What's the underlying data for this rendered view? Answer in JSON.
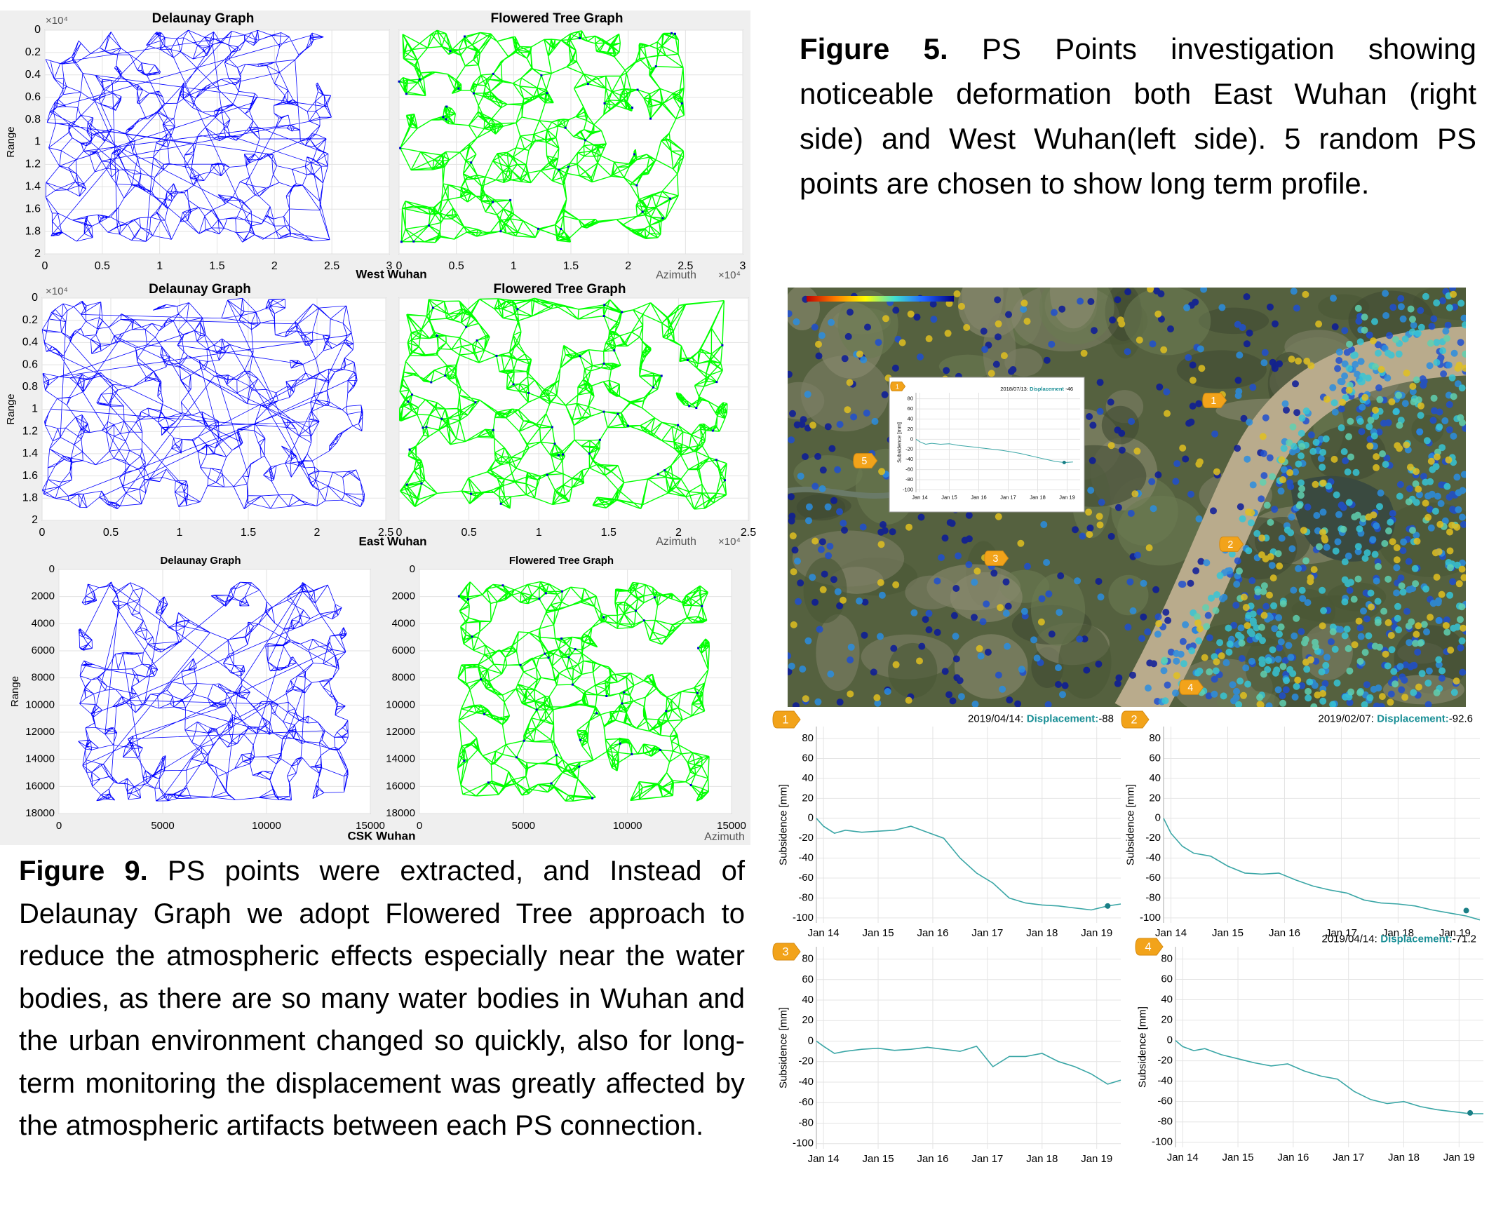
{
  "figure9": {
    "label": "Figure 9.",
    "text": "PS points were extracted, and Instead of Delaunay Graph we adopt Flowered Tree approach to reduce the atmospheric effects especially near the water bodies, as there are so many water bodies in Wuhan and the urban environment changed so quickly, also for long-term monitoring the displacement was greatly affected by the atmospheric artifacts between each PS connection.",
    "rows": [
      {
        "name": "West Wuhan",
        "x_label": "Azimuth",
        "scale": "×10⁴",
        "y_label": "Range",
        "xticks": [
          0,
          0.5,
          1,
          1.5,
          2,
          2.5,
          3
        ],
        "yticks": [
          0,
          0.2,
          0.4,
          0.6,
          0.8,
          1,
          1.2,
          1.4,
          1.6,
          1.8,
          2
        ],
        "panels": [
          {
            "title": "Delaunay Graph",
            "color": "#0000ff"
          },
          {
            "title": "Flowered Tree Graph",
            "color": "#00ff00"
          }
        ]
      },
      {
        "name": "East Wuhan",
        "x_label": "Azimuth",
        "scale": "×10⁴",
        "y_label": "Range",
        "xticks": [
          0,
          0.5,
          1,
          1.5,
          2,
          2.5
        ],
        "yticks": [
          0,
          0.2,
          0.4,
          0.6,
          0.8,
          1,
          1.2,
          1.4,
          1.6,
          1.8,
          2
        ],
        "panels": [
          {
            "title": "Delaunay Graph",
            "color": "#0000ff"
          },
          {
            "title": "Flowered Tree Graph",
            "color": "#00ff00"
          }
        ]
      },
      {
        "name": "CSK Wuhan",
        "x_label": "Azimuth",
        "y_label": "Range",
        "y_ticks_both": true,
        "xticks": [
          0,
          5000,
          10000,
          15000
        ],
        "yticks": [
          0,
          2000,
          4000,
          6000,
          8000,
          10000,
          12000,
          14000,
          16000,
          18000
        ],
        "panels": [
          {
            "title": "Delaunay Graph",
            "color": "#0000ff"
          },
          {
            "title": "Flowered Tree Graph",
            "color": "#00ff00"
          }
        ]
      }
    ]
  },
  "figure5": {
    "label": "Figure 5.",
    "text": "PS Points investigation showing noticeable deformation both East Wuhan (right side) and West  Wuhan(left side). 5 random PS points are chosen to show long term profile.",
    "markers": [
      "1",
      "2",
      "3",
      "4",
      "5"
    ],
    "inset": {
      "type": "line",
      "marker": "1",
      "date": "2018/07/13:",
      "key": "Displacement",
      "displacement": -46,
      "y_label": "Subsidence [mm]",
      "color": "#3aa6a6",
      "xlim": [
        2013.87,
        2019.44
      ],
      "ylim": [
        -105,
        92
      ],
      "xticks": [
        {
          "value": 2014,
          "label": "Jan 14"
        },
        {
          "value": 2015,
          "label": "Jan 15"
        },
        {
          "value": 2016,
          "label": "Jan 16"
        },
        {
          "value": 2017,
          "label": "Jan 17"
        },
        {
          "value": 2018,
          "label": "Jan 18"
        },
        {
          "value": 2019,
          "label": "Jan 19"
        }
      ],
      "yticks": [
        80,
        60,
        40,
        20,
        0,
        -20,
        -40,
        -60,
        -80,
        -100
      ],
      "x": [
        2013.87,
        2014.0,
        2014.2,
        2014.4,
        2014.7,
        2015.0,
        2015.3,
        2015.6,
        2015.9,
        2016.2,
        2016.5,
        2016.8,
        2017.1,
        2017.4,
        2017.7,
        2018.0,
        2018.3,
        2018.6,
        2018.9,
        2019.2
      ],
      "values": [
        0,
        -5,
        -10,
        -8,
        -10,
        -9,
        -12,
        -14,
        -16,
        -18,
        -20,
        -22,
        -25,
        -28,
        -32,
        -36,
        -40,
        -44,
        -46,
        -45
      ]
    },
    "profiles": [
      {
        "type": "line",
        "marker": "1",
        "date": "2019/04/14:",
        "key": "Displacement:",
        "displacement": -88,
        "y_label": "Subsidence [mm]",
        "color": "#3aa6a6",
        "xlim": [
          2013.87,
          2019.44
        ],
        "ylim": [
          -105,
          92
        ],
        "xticks": [
          {
            "value": 2014,
            "label": "Jan 14"
          },
          {
            "value": 2015,
            "label": "Jan 15"
          },
          {
            "value": 2016,
            "label": "Jan 16"
          },
          {
            "value": 2017,
            "label": "Jan 17"
          },
          {
            "value": 2018,
            "label": "Jan 18"
          },
          {
            "value": 2019,
            "label": "Jan 19"
          }
        ],
        "yticks": [
          80,
          60,
          40,
          20,
          0,
          -20,
          -40,
          -60,
          -80,
          -100
        ],
        "x": [
          2013.87,
          2014.0,
          2014.2,
          2014.4,
          2014.7,
          2015.0,
          2015.3,
          2015.6,
          2015.9,
          2016.2,
          2016.5,
          2016.8,
          2017.1,
          2017.4,
          2017.7,
          2018.0,
          2018.3,
          2018.6,
          2018.9,
          2019.2,
          2019.44
        ],
        "values": [
          0,
          -8,
          -15,
          -12,
          -14,
          -13,
          -12,
          -8,
          -14,
          -20,
          -40,
          -55,
          -65,
          -80,
          -85,
          -87,
          -88,
          -90,
          -92,
          -88,
          -86
        ]
      },
      {
        "type": "line",
        "marker": "2",
        "date": "2019/02/07:",
        "key": "Displacement:",
        "displacement": -92.6,
        "y_label": "Subsidence [mm]",
        "color": "#3aa6a6",
        "xlim": [
          2013.87,
          2019.44
        ],
        "ylim": [
          -105,
          92
        ],
        "xticks": [
          {
            "value": 2014,
            "label": "Jan 14"
          },
          {
            "value": 2015,
            "label": "Jan 15"
          },
          {
            "value": 2016,
            "label": "Jan 16"
          },
          {
            "value": 2017,
            "label": "Jan 17"
          },
          {
            "value": 2018,
            "label": "Jan 18"
          },
          {
            "value": 2019,
            "label": "Jan 19"
          }
        ],
        "yticks": [
          80,
          60,
          40,
          20,
          0,
          -20,
          -40,
          -60,
          -80,
          -100
        ],
        "x": [
          2013.87,
          2014.0,
          2014.2,
          2014.4,
          2014.7,
          2015.0,
          2015.3,
          2015.6,
          2015.9,
          2016.2,
          2016.5,
          2016.8,
          2017.1,
          2017.4,
          2017.7,
          2018.0,
          2018.3,
          2018.6,
          2018.9,
          2019.2,
          2019.44
        ],
        "values": [
          0,
          -15,
          -28,
          -35,
          -38,
          -48,
          -55,
          -56,
          -55,
          -62,
          -68,
          -72,
          -75,
          -82,
          -85,
          -86,
          -88,
          -92,
          -95,
          -98,
          -102
        ]
      },
      {
        "type": "line",
        "marker": "3",
        "y_label": "Subsidence [mm]",
        "color": "#3aa6a6",
        "xlim": [
          2013.87,
          2019.44
        ],
        "ylim": [
          -105,
          92
        ],
        "xticks": [
          {
            "value": 2014,
            "label": "Jan 14"
          },
          {
            "value": 2015,
            "label": "Jan 15"
          },
          {
            "value": 2016,
            "label": "Jan 16"
          },
          {
            "value": 2017,
            "label": "Jan 17"
          },
          {
            "value": 2018,
            "label": "Jan 18"
          },
          {
            "value": 2019,
            "label": "Jan 19"
          }
        ],
        "yticks": [
          80,
          60,
          40,
          20,
          0,
          -20,
          -40,
          -60,
          -80,
          -100
        ],
        "x": [
          2013.87,
          2014.0,
          2014.2,
          2014.4,
          2014.7,
          2015.0,
          2015.3,
          2015.6,
          2015.9,
          2016.2,
          2016.5,
          2016.8,
          2017.1,
          2017.4,
          2017.7,
          2018.0,
          2018.3,
          2018.6,
          2018.9,
          2019.2,
          2019.44
        ],
        "values": [
          0,
          -5,
          -12,
          -10,
          -8,
          -7,
          -9,
          -8,
          -6,
          -8,
          -10,
          -5,
          -25,
          -15,
          -15,
          -12,
          -20,
          -25,
          -32,
          -42,
          -38
        ]
      },
      {
        "type": "line",
        "marker": "4",
        "date": "2019/04/14:",
        "key": "Displacement:",
        "displacement": -71.2,
        "y_label": "Subsidence [mm]",
        "color": "#3aa6a6",
        "xlim": [
          2013.87,
          2019.44
        ],
        "ylim": [
          -105,
          92
        ],
        "xticks": [
          {
            "value": 2014,
            "label": "Jan 14"
          },
          {
            "value": 2015,
            "label": "Jan 15"
          },
          {
            "value": 2016,
            "label": "Jan 16"
          },
          {
            "value": 2017,
            "label": "Jan 17"
          },
          {
            "value": 2018,
            "label": "Jan 18"
          },
          {
            "value": 2019,
            "label": "Jan 19"
          }
        ],
        "yticks": [
          80,
          60,
          40,
          20,
          0,
          -20,
          -40,
          -60,
          -80,
          -100
        ],
        "x": [
          2013.87,
          2014.0,
          2014.2,
          2014.4,
          2014.7,
          2015.0,
          2015.3,
          2015.6,
          2015.9,
          2016.2,
          2016.5,
          2016.8,
          2017.1,
          2017.4,
          2017.7,
          2018.0,
          2018.3,
          2018.6,
          2018.9,
          2019.2,
          2019.44
        ],
        "values": [
          0,
          -6,
          -10,
          -8,
          -14,
          -18,
          -22,
          -25,
          -23,
          -30,
          -35,
          -38,
          -50,
          -58,
          -62,
          -60,
          -65,
          -68,
          -70,
          -72,
          -72
        ]
      }
    ]
  }
}
